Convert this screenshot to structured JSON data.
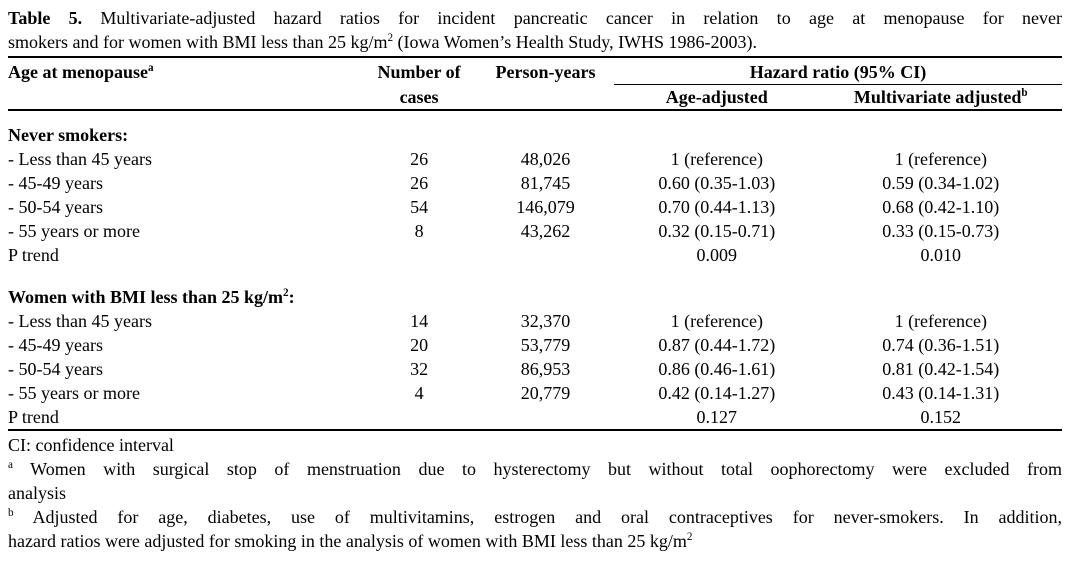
{
  "caption": {
    "lines": [
      {
        "justify": true,
        "segments": [
          {
            "text": "Table 5.",
            "bold": true
          },
          {
            "text": " Multivariate-adjusted hazard ratios for incident pancreatic cancer in relation to age at menopause for never"
          }
        ]
      },
      {
        "justify": false,
        "segments": [
          {
            "text": "smokers and for women with BMI less than 25 kg/m"
          },
          {
            "text": "2",
            "sup": true
          },
          {
            "text": " (Iowa Women’s Health Study, IWHS 1986-2003)."
          }
        ]
      }
    ]
  },
  "table": {
    "header": {
      "age_label": "Age at menopause",
      "age_sup": "a",
      "cases_line1": "Number of",
      "cases_line2": "cases",
      "person_years": "Person-years",
      "hr_group": "Hazard ratio (95% CI)",
      "age_adjusted": "Age-adjusted",
      "multivariate_label": "Multivariate adjusted",
      "multivariate_sup": "b"
    },
    "sections": [
      {
        "title_segments": [
          {
            "text": "Never smokers:",
            "bold": true
          }
        ],
        "rows": [
          {
            "label": "- Less than 45 years",
            "cases": "26",
            "person_years": "48,026",
            "age_adjusted": "1 (reference)",
            "multivariate_adjusted": "1 (reference)"
          },
          {
            "label": "- 45-49 years",
            "cases": "26",
            "person_years": "81,745",
            "age_adjusted": "0.60 (0.35-1.03)",
            "multivariate_adjusted": "0.59 (0.34-1.02)"
          },
          {
            "label": "- 50-54 years",
            "cases": "54",
            "person_years": "146,079",
            "age_adjusted": "0.70 (0.44-1.13)",
            "multivariate_adjusted": "0.68 (0.42-1.10)"
          },
          {
            "label": "- 55 years or more",
            "cases": "8",
            "person_years": "43,262",
            "age_adjusted": "0.32 (0.15-0.71)",
            "multivariate_adjusted": "0.33 (0.15-0.73)"
          }
        ],
        "p_trend": {
          "label": "P trend",
          "age_adjusted": "0.009",
          "multivariate_adjusted": "0.010"
        }
      },
      {
        "title_segments": [
          {
            "text": "Women with BMI less than 25 kg/m",
            "bold": true
          },
          {
            "text": "2",
            "bold": true,
            "sup": true
          },
          {
            "text": ":",
            "bold": true
          }
        ],
        "rows": [
          {
            "label": "- Less than 45 years",
            "cases": "14",
            "person_years": "32,370",
            "age_adjusted": "1 (reference)",
            "multivariate_adjusted": "1 (reference)"
          },
          {
            "label": "- 45-49 years",
            "cases": "20",
            "person_years": "53,779",
            "age_adjusted": "0.87 (0.44-1.72)",
            "multivariate_adjusted": "0.74 (0.36-1.51)"
          },
          {
            "label": "- 50-54 years",
            "cases": "32",
            "person_years": "86,953",
            "age_adjusted": "0.86 (0.46-1.61)",
            "multivariate_adjusted": "0.81 (0.42-1.54)"
          },
          {
            "label": "- 55 years or more",
            "cases": "4",
            "person_years": "20,779",
            "age_adjusted": "0.42 (0.14-1.27)",
            "multivariate_adjusted": "0.43 (0.14-1.31)"
          }
        ],
        "p_trend": {
          "label": "P trend",
          "age_adjusted": "0.127",
          "multivariate_adjusted": "0.152"
        }
      }
    ]
  },
  "footnotes": {
    "ci_note": "CI: confidence interval",
    "notes": [
      {
        "lines": [
          {
            "justify": true,
            "segments": [
              {
                "text": "a",
                "sup": true
              },
              {
                "text": " Women with surgical stop of menstruation due to hysterectomy but without total oophorectomy were excluded from"
              }
            ]
          },
          {
            "justify": false,
            "segments": [
              {
                "text": "analysis"
              }
            ]
          }
        ]
      },
      {
        "lines": [
          {
            "justify": true,
            "segments": [
              {
                "text": "b",
                "sup": true
              },
              {
                "text": " Adjusted for age, diabetes, use of multivitamins, estrogen and oral contraceptives for never-smokers. In addition,"
              }
            ]
          },
          {
            "justify": false,
            "segments": [
              {
                "text": "hazard ratios were adjusted for smoking in the analysis of women with BMI less than 25 kg/m"
              },
              {
                "text": "2",
                "sup": true
              }
            ]
          }
        ]
      }
    ]
  }
}
